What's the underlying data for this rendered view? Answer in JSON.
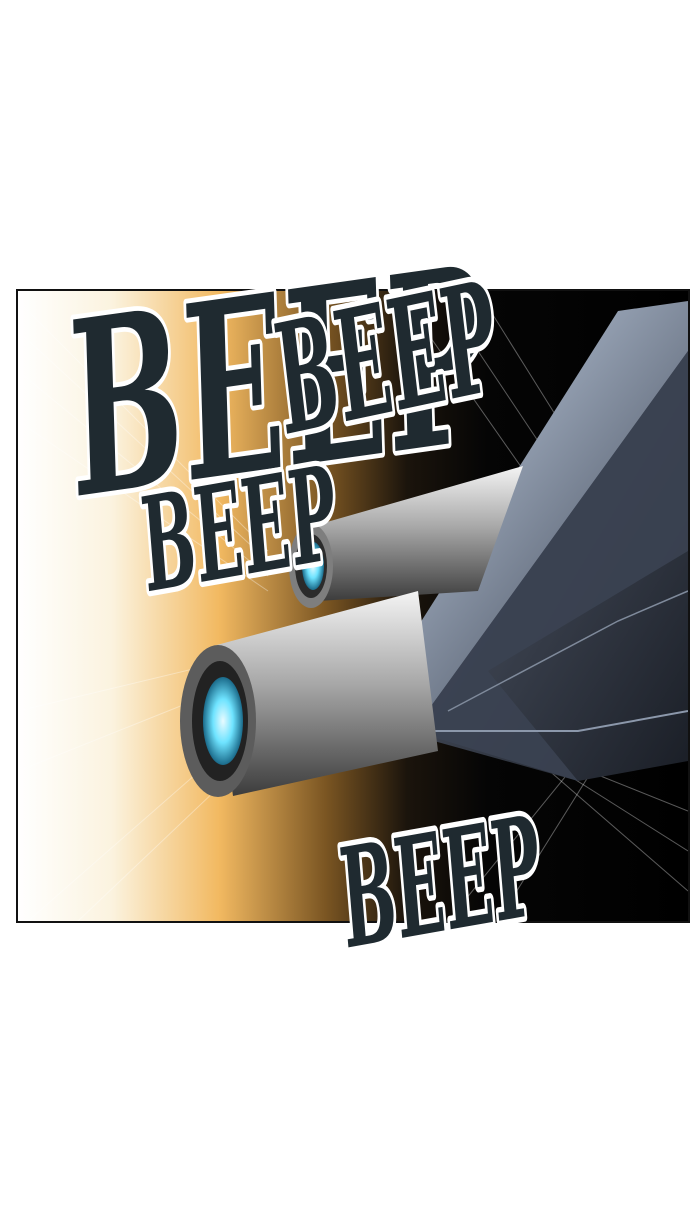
{
  "sound_effects": {
    "beep_1": "BEEP",
    "beep_2": "BEEP",
    "beep_3": "BEEP",
    "beep_4": "BEEP"
  },
  "colors": {
    "glow": "#f2b961",
    "thruster_light": "#6ee3ff",
    "hull": "#4a5566",
    "ink": "#1f2a30"
  }
}
